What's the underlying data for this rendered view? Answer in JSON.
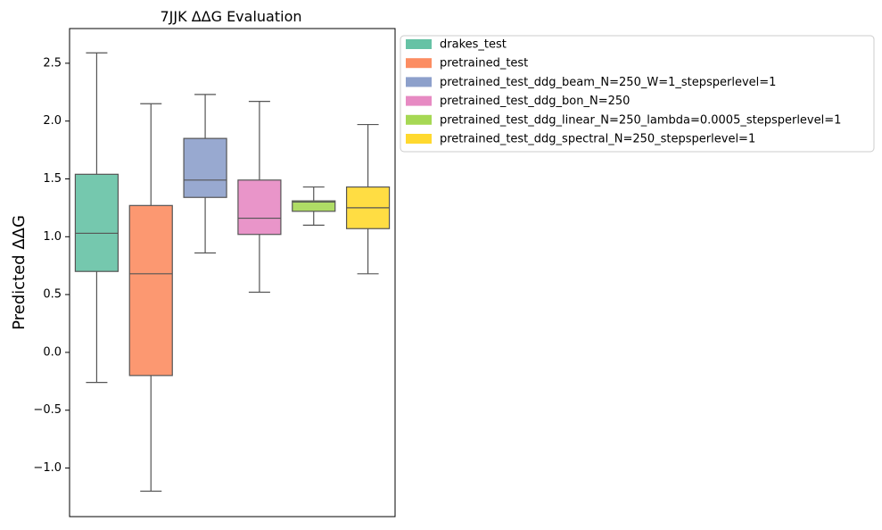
{
  "chart_data": {
    "type": "box",
    "title": "7JJK ΔΔG Evaluation",
    "xlabel": "",
    "ylabel": "Predicted ΔΔG",
    "ylim": [
      -1.42,
      2.8
    ],
    "yticks": [
      {
        "value": -1.0,
        "label": "−1.0"
      },
      {
        "value": -0.5,
        "label": "−0.5"
      },
      {
        "value": 0.0,
        "label": "0.0"
      },
      {
        "value": 0.5,
        "label": "0.5"
      },
      {
        "value": 1.0,
        "label": "1.0"
      },
      {
        "value": 1.5,
        "label": "1.5"
      },
      {
        "value": 2.0,
        "label": "2.0"
      },
      {
        "value": 2.5,
        "label": "2.5"
      }
    ],
    "grid": false,
    "legend_position": "outside-upper-right",
    "series": [
      {
        "name": "drakes_test",
        "color": "#66c2a5",
        "whisker_low": -0.26,
        "q1": 0.7,
        "median": 1.03,
        "q3": 1.54,
        "whisker_high": 2.59
      },
      {
        "name": "pretrained_test",
        "color": "#fc8d62",
        "whisker_low": -1.2,
        "q1": -0.2,
        "median": 0.68,
        "q3": 1.27,
        "whisker_high": 2.15
      },
      {
        "name": "pretrained_test_ddg_beam_N=250_W=1_stepsperlevel=1",
        "color": "#8da0cb",
        "whisker_low": 0.86,
        "q1": 1.34,
        "median": 1.49,
        "q3": 1.85,
        "whisker_high": 2.23
      },
      {
        "name": "pretrained_test_ddg_bon_N=250",
        "color": "#e78ac3",
        "whisker_low": 0.52,
        "q1": 1.02,
        "median": 1.16,
        "q3": 1.49,
        "whisker_high": 2.17
      },
      {
        "name": "pretrained_test_ddg_linear_N=250_lambda=0.0005_stepsperlevel=1",
        "color": "#a6d854",
        "whisker_low": 1.1,
        "q1": 1.22,
        "median": 1.3,
        "q3": 1.31,
        "whisker_high": 1.43
      },
      {
        "name": "pretrained_test_ddg_spectral_N=250_stepsperlevel=1",
        "color": "#ffd92f",
        "whisker_low": 0.68,
        "q1": 1.07,
        "median": 1.25,
        "q3": 1.43,
        "whisker_high": 1.97
      }
    ]
  }
}
